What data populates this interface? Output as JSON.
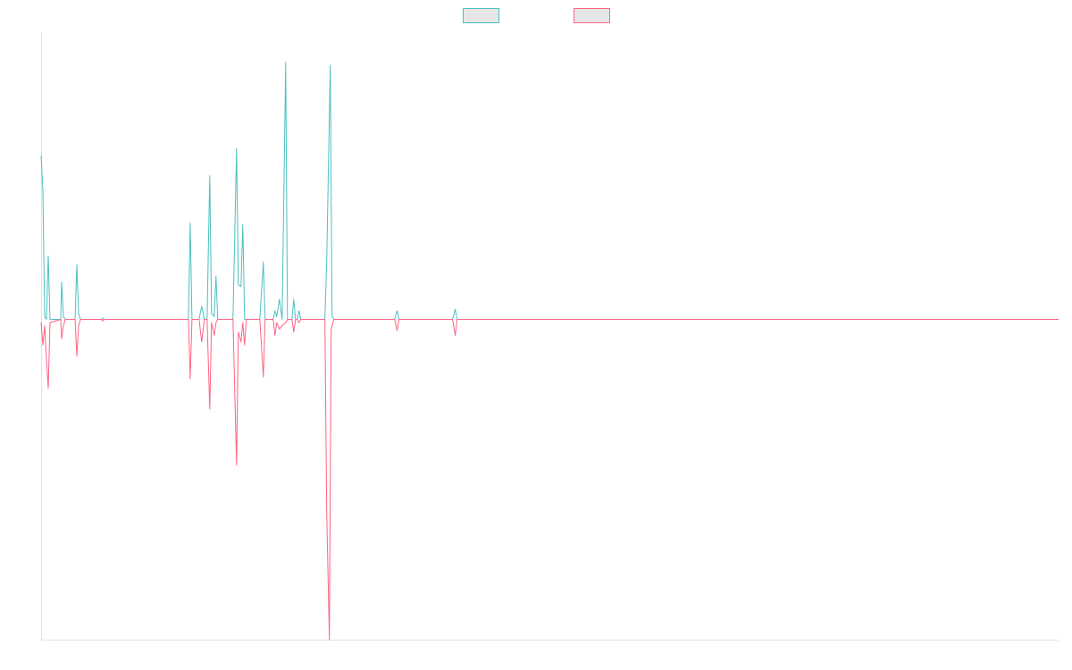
{
  "chart_data": {
    "type": "line",
    "title": "",
    "xlabel": "",
    "ylabel": "",
    "grid": false,
    "legend_position": "top-center",
    "y_range": [
      -1,
      1
    ],
    "x_range": [
      0,
      1140
    ],
    "series": [
      {
        "key": "upper",
        "color": "#4bc0c0",
        "legend_fill": "#e6e6e6",
        "points": [
          [
            0,
            0.57
          ],
          [
            2,
            0.45
          ],
          [
            4,
            0.01
          ],
          [
            6,
            0.0
          ],
          [
            8,
            0.22
          ],
          [
            10,
            0.0
          ],
          [
            22,
            0.0
          ],
          [
            23,
            0.13
          ],
          [
            25,
            0.01
          ],
          [
            27,
            0.0
          ],
          [
            38,
            0.0
          ],
          [
            40,
            0.19
          ],
          [
            42,
            0.02
          ],
          [
            44,
            0.0
          ],
          [
            68,
            0.0
          ],
          [
            69,
            0.005
          ],
          [
            70,
            0.0
          ],
          [
            165,
            0.0
          ],
          [
            167,
            0.335
          ],
          [
            169,
            0.0
          ],
          [
            177,
            0.0
          ],
          [
            180,
            0.045
          ],
          [
            183,
            0.0
          ],
          [
            186,
            0.0
          ],
          [
            189,
            0.5
          ],
          [
            191,
            0.02
          ],
          [
            194,
            0.01
          ],
          [
            196,
            0.15
          ],
          [
            198,
            0.0
          ],
          [
            215,
            0.0
          ],
          [
            219,
            0.595
          ],
          [
            221,
            0.12
          ],
          [
            224,
            0.115
          ],
          [
            226,
            0.33
          ],
          [
            228,
            0.0
          ],
          [
            245,
            0.0
          ],
          [
            249,
            0.2
          ],
          [
            251,
            0.0
          ],
          [
            260,
            0.0
          ],
          [
            262,
            0.03
          ],
          [
            264,
            0.01
          ],
          [
            267,
            0.07
          ],
          [
            270,
            0.0
          ],
          [
            274,
            0.895
          ],
          [
            276,
            0.0
          ],
          [
            281,
            0.0
          ],
          [
            283,
            0.07
          ],
          [
            285,
            0.0
          ],
          [
            287,
            0.0
          ],
          [
            289,
            0.03
          ],
          [
            291,
            0.0
          ],
          [
            318,
            0.0
          ],
          [
            320,
            0.2
          ],
          [
            324,
            0.885
          ],
          [
            326,
            0.01
          ],
          [
            328,
            0.0
          ],
          [
            396,
            0.0
          ],
          [
            399,
            0.03
          ],
          [
            401,
            0.0
          ],
          [
            461,
            0.0
          ],
          [
            464,
            0.035
          ],
          [
            466,
            0.0
          ],
          [
            1140,
            0.0
          ]
        ]
      },
      {
        "key": "lower",
        "color": "#ff6384",
        "legend_fill": "#e6e6e6",
        "points": [
          [
            0,
            -0.01
          ],
          [
            2,
            -0.08
          ],
          [
            4,
            -0.02
          ],
          [
            6,
            -0.12
          ],
          [
            8,
            -0.215
          ],
          [
            10,
            -0.01
          ],
          [
            22,
            0.0
          ],
          [
            23,
            -0.06
          ],
          [
            25,
            -0.02
          ],
          [
            27,
            0.0
          ],
          [
            38,
            0.0
          ],
          [
            40,
            -0.115
          ],
          [
            42,
            -0.02
          ],
          [
            44,
            0.0
          ],
          [
            68,
            0.0
          ],
          [
            69,
            -0.005
          ],
          [
            70,
            0.0
          ],
          [
            165,
            0.0
          ],
          [
            167,
            -0.185
          ],
          [
            169,
            0.0
          ],
          [
            177,
            0.0
          ],
          [
            180,
            -0.07
          ],
          [
            183,
            0.0
          ],
          [
            186,
            0.0
          ],
          [
            189,
            -0.28
          ],
          [
            191,
            -0.01
          ],
          [
            194,
            -0.05
          ],
          [
            196,
            -0.01
          ],
          [
            198,
            0.0
          ],
          [
            215,
            0.0
          ],
          [
            219,
            -0.455
          ],
          [
            221,
            -0.04
          ],
          [
            224,
            -0.07
          ],
          [
            226,
            -0.01
          ],
          [
            228,
            -0.08
          ],
          [
            230,
            0.0
          ],
          [
            245,
            0.0
          ],
          [
            249,
            -0.18
          ],
          [
            251,
            0.0
          ],
          [
            260,
            0.0
          ],
          [
            262,
            -0.05
          ],
          [
            264,
            -0.01
          ],
          [
            267,
            -0.03
          ],
          [
            270,
            -0.02
          ],
          [
            274,
            -0.01
          ],
          [
            276,
            0.0
          ],
          [
            281,
            0.0
          ],
          [
            283,
            -0.04
          ],
          [
            285,
            0.0
          ],
          [
            287,
            0.0
          ],
          [
            289,
            -0.01
          ],
          [
            291,
            0.0
          ],
          [
            318,
            0.0
          ],
          [
            320,
            -0.6
          ],
          [
            323,
            -1.0
          ],
          [
            325,
            -0.03
          ],
          [
            328,
            0.0
          ],
          [
            396,
            0.0
          ],
          [
            399,
            -0.035
          ],
          [
            401,
            0.0
          ],
          [
            461,
            0.0
          ],
          [
            464,
            -0.05
          ],
          [
            466,
            0.0
          ],
          [
            1140,
            0.0
          ]
        ]
      }
    ]
  }
}
